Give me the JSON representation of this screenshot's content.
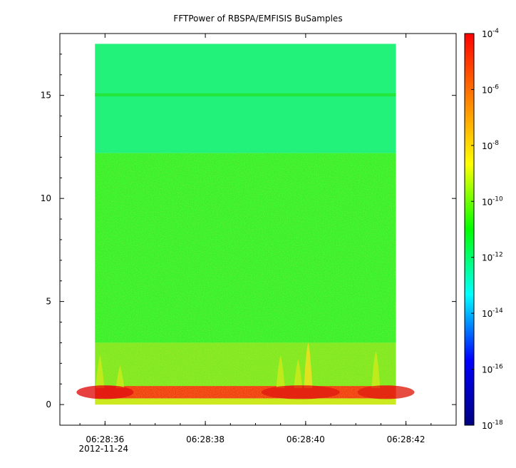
{
  "chart_data": {
    "type": "heatmap",
    "title": "FFTPower of RBSPA/EMFISIS  BuSamples",
    "xlabel": "",
    "ylabel": "",
    "x_time_range": [
      "06:28:35.8",
      "06:28:41.8"
    ],
    "x_axis_range": [
      "06:28:35.1",
      "06:28:43.0"
    ],
    "x_ticks": [
      "06:28:36",
      "06:28:38",
      "06:28:40",
      "06:28:42"
    ],
    "x_date_label": "2012-11-24",
    "y_range": [
      -1,
      18
    ],
    "y_ticks": [
      0,
      5,
      10,
      15
    ],
    "data_y_range": [
      0,
      17.5
    ],
    "colorbar": {
      "scale": "log",
      "range": [
        1e-18,
        0.0001
      ],
      "tick_base": "10",
      "tick_exponents": [
        "-4",
        "-6",
        "-8",
        "-10",
        "-12",
        "-14",
        "-16",
        "-18"
      ],
      "colormap": [
        "#000080",
        "#0000ff",
        "#00ffff",
        "#00ff00",
        "#ffff00",
        "#ff8000",
        "#ff0000"
      ]
    },
    "bands": [
      {
        "y_range": [
          12.2,
          17.5
        ],
        "level": 1e-12,
        "color": "#22f27a"
      },
      {
        "y_range": [
          14.95,
          15.1
        ],
        "level": 1e-11,
        "color": "#22e63c"
      },
      {
        "y_range": [
          3.0,
          12.2
        ],
        "level": 1e-10,
        "color": "#33f02a"
      },
      {
        "y_range": [
          0.8,
          3.0
        ],
        "level": 1e-09,
        "color": "#7de81f"
      },
      {
        "y_range": [
          0.3,
          0.9
        ],
        "level": 1e-06,
        "color": "#f23a10"
      },
      {
        "y_range": [
          0.0,
          0.3
        ],
        "level": 1e-09,
        "color": "#c8e81a"
      }
    ],
    "bursts": [
      {
        "time": "06:28:35.9",
        "y_top": 2.4,
        "level": 1e-08
      },
      {
        "time": "06:28:36.3",
        "y_top": 1.9,
        "level": 1e-08
      },
      {
        "time": "06:28:39.5",
        "y_top": 2.4,
        "level": 1e-08
      },
      {
        "time": "06:28:39.85",
        "y_top": 2.2,
        "level": 1e-08
      },
      {
        "time": "06:28:40.05",
        "y_top": 3.0,
        "level": 1e-07
      },
      {
        "time": "06:28:41.4",
        "y_top": 2.6,
        "level": 1e-08
      }
    ]
  }
}
